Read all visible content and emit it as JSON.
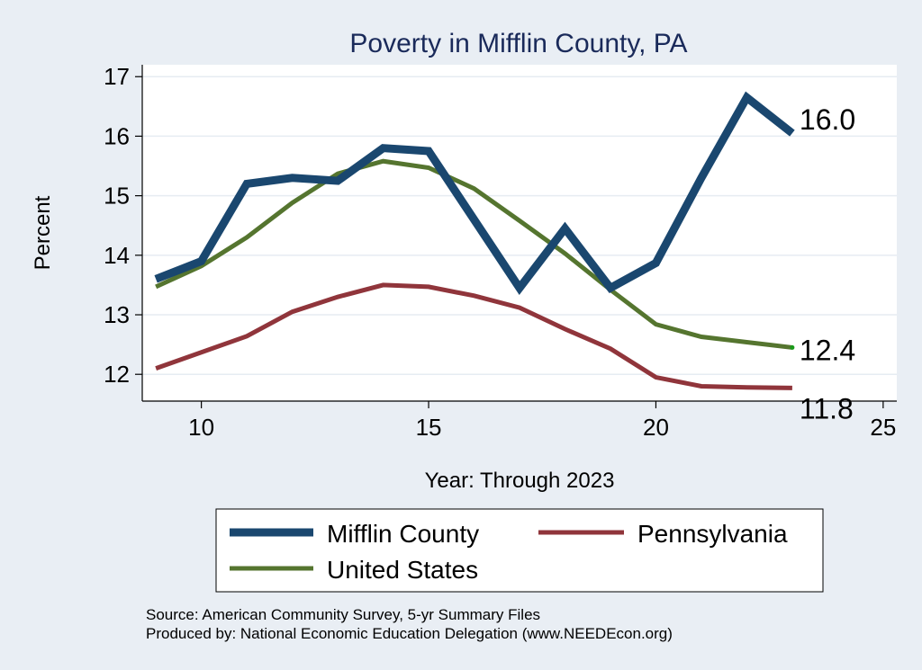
{
  "chart_data": {
    "type": "line",
    "title": "Poverty in Mifflin County, PA",
    "xlabel": "Year: Through 2023",
    "ylabel": "Percent",
    "xlim": [
      8.7,
      25.3
    ],
    "ylim": [
      11.55,
      17.2
    ],
    "xticks": [
      10,
      15,
      20,
      25
    ],
    "yticks": [
      12,
      13,
      14,
      15,
      16,
      17
    ],
    "grid": true,
    "series": [
      {
        "name": "Mifflin County",
        "color": "#1a476f",
        "width": "thick",
        "x": [
          9,
          10,
          11,
          12,
          13,
          14,
          15,
          16,
          17,
          18,
          19,
          20,
          21,
          22,
          23
        ],
        "y": [
          13.6,
          13.9,
          15.2,
          15.3,
          15.25,
          15.8,
          15.75,
          14.6,
          13.45,
          14.45,
          13.45,
          13.87,
          15.3,
          16.65,
          16.05
        ],
        "end_label": "16.0"
      },
      {
        "name": "Pennsylvania",
        "color": "#90353b",
        "width": "medium",
        "x": [
          9,
          10,
          11,
          12,
          13,
          14,
          15,
          16,
          17,
          18,
          19,
          20,
          21,
          22,
          23
        ],
        "y": [
          12.1,
          12.37,
          12.64,
          13.05,
          13.3,
          13.5,
          13.47,
          13.32,
          13.12,
          12.76,
          12.43,
          11.95,
          11.8,
          11.78,
          11.77
        ],
        "end_label": "11.8"
      },
      {
        "name": "United States",
        "color": "#55752f",
        "width": "medium",
        "x": [
          9,
          10,
          11,
          12,
          13,
          14,
          15,
          16,
          17,
          18,
          19,
          20,
          21,
          22,
          23
        ],
        "y": [
          13.47,
          13.82,
          14.3,
          14.88,
          15.37,
          15.58,
          15.47,
          15.12,
          14.58,
          14.03,
          13.42,
          12.84,
          12.63,
          12.54,
          12.45
        ],
        "end_label": "12.4"
      }
    ],
    "legend": {
      "position": "bottom",
      "items": [
        "Mifflin County",
        "Pennsylvania",
        "United States"
      ]
    },
    "notes": [
      "Source: American Community Survey, 5-yr Summary Files",
      "Produced by: National Economic Education Delegation (www.NEEDEcon.org)"
    ]
  }
}
